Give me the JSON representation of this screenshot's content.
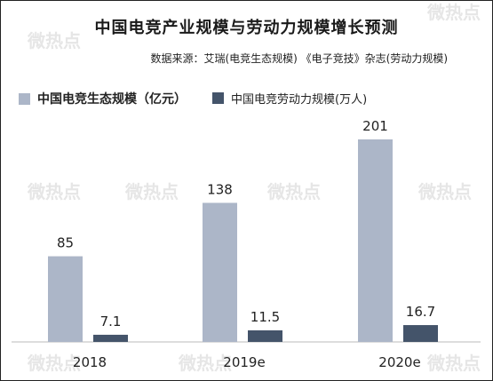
{
  "chart_data": {
    "type": "bar",
    "title": "中国电竞产业规模与劳动力规模增长预测",
    "source": "数据来源：艾瑞(电竞生态规模)  《电子竞技》杂志(劳动力规模)",
    "categories": [
      "2018",
      "2019e",
      "2020e"
    ],
    "series": [
      {
        "name": "中国电竞生态规模（亿元）",
        "values": [
          85,
          138,
          201
        ],
        "color": "#acb6c8"
      },
      {
        "name": "中国电竞劳动力规模(万人)",
        "values": [
          7.1,
          11.5,
          16.7
        ],
        "color": "#44546a"
      }
    ],
    "value_labels": [
      [
        "85",
        "138",
        "201"
      ],
      [
        "7.1",
        "11.5",
        "16.7"
      ]
    ],
    "ylim": [
      0,
      245
    ],
    "grid": false,
    "legend_position": "top-left"
  },
  "watermark": "微热点"
}
